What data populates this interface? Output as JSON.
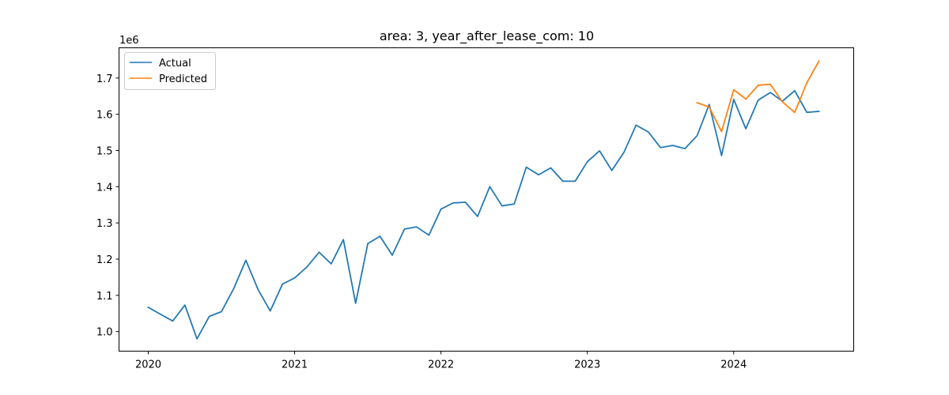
{
  "chart_data": {
    "type": "line",
    "title": "area: 3, year_after_lease_com: 10",
    "xlabel": "",
    "ylabel": "",
    "y_offset_label": "1e6",
    "xlim": [
      2019.8,
      2024.82
    ],
    "ylim": [
      0.9459,
      1.7835
    ],
    "x_ticks": [
      2020,
      2021,
      2022,
      2023,
      2024
    ],
    "x_tick_labels": [
      "2020",
      "2021",
      "2022",
      "2023",
      "2024"
    ],
    "y_ticks": [
      1.0,
      1.1,
      1.2,
      1.3,
      1.4,
      1.5,
      1.6,
      1.7
    ],
    "y_tick_labels": [
      "1.0",
      "1.1",
      "1.2",
      "1.3",
      "1.4",
      "1.5",
      "1.6",
      "1.7"
    ],
    "legend": {
      "placement": "top-left",
      "entries": [
        "Actual",
        "Predicted"
      ]
    },
    "series": [
      {
        "name": "Actual",
        "color": "#1f77b4",
        "x": [
          2020.0,
          2020.083,
          2020.167,
          2020.25,
          2020.333,
          2020.417,
          2020.5,
          2020.583,
          2020.667,
          2020.75,
          2020.833,
          2020.917,
          2021.0,
          2021.083,
          2021.167,
          2021.25,
          2021.333,
          2021.417,
          2021.5,
          2021.583,
          2021.667,
          2021.75,
          2021.833,
          2021.917,
          2022.0,
          2022.083,
          2022.167,
          2022.25,
          2022.333,
          2022.417,
          2022.5,
          2022.583,
          2022.667,
          2022.75,
          2022.833,
          2022.917,
          2023.0,
          2023.083,
          2023.167,
          2023.25,
          2023.333,
          2023.417,
          2023.5,
          2023.583,
          2023.667,
          2023.75,
          2023.833,
          2023.917,
          2024.0,
          2024.083,
          2024.167,
          2024.25,
          2024.333,
          2024.417,
          2024.5,
          2024.583
        ],
        "values": [
          1.067,
          1.048,
          1.029,
          1.073,
          0.98,
          1.042,
          1.055,
          1.118,
          1.197,
          1.116,
          1.057,
          1.131,
          1.148,
          1.178,
          1.219,
          1.187,
          1.254,
          1.078,
          1.243,
          1.263,
          1.211,
          1.283,
          1.289,
          1.266,
          1.338,
          1.355,
          1.357,
          1.318,
          1.4,
          1.347,
          1.352,
          1.454,
          1.433,
          1.452,
          1.415,
          1.415,
          1.469,
          1.499,
          1.445,
          1.495,
          1.57,
          1.551,
          1.508,
          1.514,
          1.505,
          1.541,
          1.627,
          1.486,
          1.641,
          1.56,
          1.639,
          1.66,
          1.636,
          1.665,
          1.605,
          1.608
        ]
      },
      {
        "name": "Predicted",
        "color": "#ff7f0e",
        "x": [
          2023.75,
          2023.833,
          2023.917,
          2024.0,
          2024.083,
          2024.167,
          2024.25,
          2024.333,
          2024.417,
          2024.5,
          2024.583
        ],
        "values": [
          1.632,
          1.62,
          1.552,
          1.668,
          1.642,
          1.68,
          1.683,
          1.634,
          1.605,
          1.687,
          1.747
        ]
      }
    ]
  }
}
